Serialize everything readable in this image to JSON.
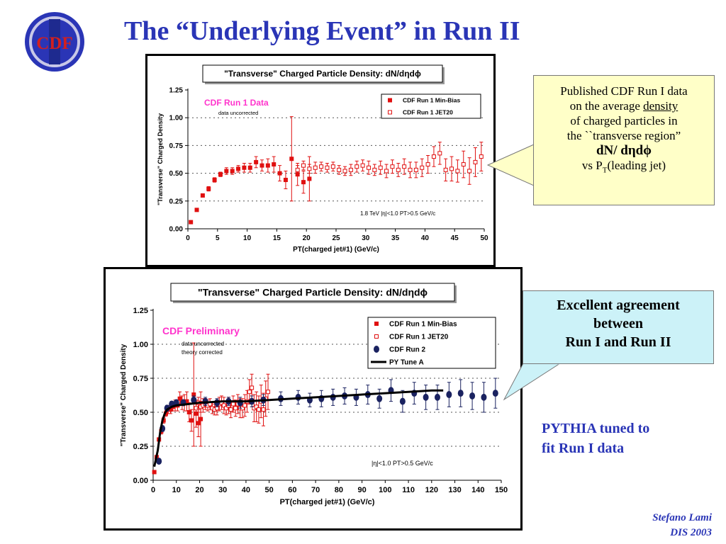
{
  "slide": {
    "title": "The “Underlying Event” in Run II",
    "logo_text": "CDF",
    "logo_colors": {
      "outer": "#2a35b6",
      "ring": "#c8c8e8",
      "text": "#d21f1f",
      "bar": "#1e2a8f"
    }
  },
  "callout1": {
    "line1": "Published CDF Run I data",
    "line2a": "on the average ",
    "line2b": "density",
    "line3": "of charged particles in",
    "line4": "the ``transverse region”",
    "line5": "dN/ dηdϕ",
    "line6a": "vs P",
    "line6sub": "T",
    "line6b": "(leading jet)"
  },
  "callout2": {
    "line1": "Excellent agreement",
    "line2": "between",
    "line3": "Run I and Run II"
  },
  "pythia_note": {
    "line1": "PYTHIA tuned to",
    "line2": "fit Run I data"
  },
  "footer": {
    "author": "Stefano Lami",
    "conference": "DIS 2003"
  },
  "chart_data": [
    {
      "type": "scatter",
      "title": "\"Transverse\" Charged Particle Density: dN/dηdϕ",
      "xlabel": "PT(charged jet#1)  (GeV/c)",
      "ylabel": "\"Transverse\" Charged Density",
      "xlim": [
        0,
        50
      ],
      "ylim": [
        0,
        1.25
      ],
      "x_ticks": [
        0,
        5,
        10,
        15,
        20,
        25,
        30,
        35,
        40,
        45,
        50
      ],
      "y_ticks": [
        "0.00",
        "0.25",
        "0.50",
        "0.75",
        "1.00",
        "1.25"
      ],
      "annotations": [
        "CDF Run 1 Data",
        "data uncorrected",
        "1.8 TeV |η|<1.0 PT>0.5 GeV/c"
      ],
      "legend": "top-right",
      "series": [
        {
          "name": "CDF Run 1 Min-Bias",
          "color": "#e01010",
          "marker": "filled-square",
          "x": [
            0.5,
            1.5,
            2.5,
            3.5,
            4.5,
            5.5,
            6.5,
            7.5,
            8.5,
            9.5,
            10.5,
            11.5,
            12.5,
            13.5,
            14.5,
            15.5,
            16.5,
            17.5,
            18.5,
            19.5,
            20.5
          ],
          "y": [
            0.06,
            0.17,
            0.3,
            0.36,
            0.44,
            0.49,
            0.52,
            0.52,
            0.54,
            0.55,
            0.55,
            0.6,
            0.57,
            0.57,
            0.58,
            0.5,
            0.44,
            0.63,
            0.49,
            0.42,
            0.45
          ],
          "err": [
            0,
            0,
            0.01,
            0.02,
            0.02,
            0.02,
            0.03,
            0.03,
            0.03,
            0.04,
            0.04,
            0.05,
            0.05,
            0.06,
            0.07,
            0.07,
            0.08,
            0.38,
            0.1,
            0.1,
            0.2
          ]
        },
        {
          "name": "CDF Run 1 JET20",
          "color": "#e01010",
          "marker": "open-square",
          "x": [
            18.5,
            19.5,
            20.5,
            21.5,
            22.5,
            23.5,
            24.5,
            25.5,
            26.5,
            27.5,
            28.5,
            29.5,
            30.5,
            31.5,
            32.5,
            33.5,
            34.5,
            35.5,
            36.5,
            37.5,
            38.5,
            39.5,
            40.5,
            41.5,
            42.5,
            43.5,
            44.5,
            45.5,
            46.5,
            47.5,
            48.5,
            49.5
          ],
          "y": [
            0.53,
            0.57,
            0.54,
            0.55,
            0.56,
            0.55,
            0.56,
            0.53,
            0.52,
            0.53,
            0.56,
            0.57,
            0.55,
            0.53,
            0.55,
            0.52,
            0.56,
            0.53,
            0.56,
            0.53,
            0.53,
            0.55,
            0.58,
            0.65,
            0.68,
            0.53,
            0.54,
            0.52,
            0.58,
            0.52,
            0.6,
            0.65
          ],
          "err": [
            0.04,
            0.04,
            0.04,
            0.05,
            0.04,
            0.04,
            0.04,
            0.04,
            0.04,
            0.05,
            0.05,
            0.05,
            0.06,
            0.05,
            0.06,
            0.06,
            0.06,
            0.06,
            0.07,
            0.07,
            0.07,
            0.08,
            0.08,
            0.09,
            0.1,
            0.1,
            0.11,
            0.1,
            0.12,
            0.12,
            0.13,
            0.13
          ]
        }
      ]
    },
    {
      "type": "scatter",
      "title": "\"Transverse\" Charged Particle Density: dN/dηdϕ",
      "xlabel": "PT(charged jet#1)  (GeV/c)",
      "ylabel": "\"Transverse\" Charged Density",
      "xlim": [
        0,
        150
      ],
      "ylim": [
        0,
        1.25
      ],
      "x_ticks": [
        0,
        10,
        20,
        30,
        40,
        50,
        60,
        70,
        80,
        90,
        100,
        110,
        120,
        130,
        140,
        150
      ],
      "y_ticks": [
        "0.00",
        "0.25",
        "0.50",
        "0.75",
        "1.00",
        "1.25"
      ],
      "annotations": [
        "CDF Preliminary",
        "data uncorrected",
        "theory corrected",
        "|η|<1.0 PT>0.5 GeV/c"
      ],
      "legend": "top-right",
      "series": [
        {
          "name": "CDF Run 1 Min-Bias",
          "color": "#e01010",
          "marker": "filled-square",
          "x": [
            0.5,
            1.5,
            2.5,
            3.5,
            4.5,
            5.5,
            6.5,
            7.5,
            8.5,
            9.5,
            10.5,
            11.5,
            12.5,
            13.5,
            14.5,
            15.5,
            16.5,
            17.5,
            18.5,
            19.5,
            20.5
          ],
          "y": [
            0.06,
            0.17,
            0.3,
            0.36,
            0.44,
            0.49,
            0.52,
            0.52,
            0.54,
            0.55,
            0.55,
            0.6,
            0.57,
            0.57,
            0.58,
            0.5,
            0.44,
            0.63,
            0.49,
            0.42,
            0.45
          ],
          "err": [
            0,
            0,
            0.01,
            0.02,
            0.02,
            0.02,
            0.03,
            0.03,
            0.03,
            0.04,
            0.04,
            0.05,
            0.05,
            0.06,
            0.07,
            0.07,
            0.08,
            0.38,
            0.1,
            0.1,
            0.2
          ]
        },
        {
          "name": "CDF Run 1 JET20",
          "color": "#e01010",
          "marker": "open-square",
          "x": [
            18.5,
            19.5,
            20.5,
            21.5,
            22.5,
            23.5,
            24.5,
            25.5,
            26.5,
            27.5,
            28.5,
            29.5,
            30.5,
            31.5,
            32.5,
            33.5,
            34.5,
            35.5,
            36.5,
            37.5,
            38.5,
            39.5,
            40.5,
            41.5,
            42.5,
            43.5,
            44.5,
            45.5,
            46.5,
            47.5,
            48.5,
            49.5
          ],
          "y": [
            0.53,
            0.57,
            0.54,
            0.55,
            0.56,
            0.55,
            0.56,
            0.53,
            0.52,
            0.53,
            0.56,
            0.57,
            0.55,
            0.53,
            0.55,
            0.52,
            0.56,
            0.53,
            0.56,
            0.53,
            0.53,
            0.55,
            0.58,
            0.65,
            0.68,
            0.53,
            0.54,
            0.52,
            0.58,
            0.52,
            0.6,
            0.65
          ],
          "err": [
            0.04,
            0.04,
            0.04,
            0.05,
            0.04,
            0.04,
            0.04,
            0.04,
            0.04,
            0.05,
            0.05,
            0.05,
            0.06,
            0.05,
            0.06,
            0.06,
            0.06,
            0.06,
            0.07,
            0.07,
            0.07,
            0.08,
            0.08,
            0.09,
            0.1,
            0.1,
            0.11,
            0.1,
            0.12,
            0.12,
            0.13,
            0.13
          ]
        },
        {
          "name": "CDF Run 2",
          "color": "#1a2260",
          "marker": "filled-circle",
          "x": [
            2.5,
            4,
            6,
            8,
            10,
            13,
            17.5,
            22.5,
            27.5,
            32.5,
            37.5,
            42.5,
            47.5,
            55,
            62.5,
            67.5,
            72.5,
            77.5,
            82.5,
            87.5,
            92.5,
            97.5,
            102.5,
            107.5,
            112.5,
            117.5,
            122.5,
            127.5,
            132.5,
            137.5,
            142.5,
            147.5
          ],
          "y": [
            0.14,
            0.38,
            0.53,
            0.56,
            0.57,
            0.57,
            0.59,
            0.58,
            0.57,
            0.58,
            0.57,
            0.58,
            0.59,
            0.6,
            0.61,
            0.59,
            0.6,
            0.61,
            0.62,
            0.61,
            0.63,
            0.6,
            0.66,
            0.58,
            0.64,
            0.61,
            0.61,
            0.63,
            0.64,
            0.62,
            0.61,
            0.64
          ],
          "err": [
            0.01,
            0.02,
            0.02,
            0.02,
            0.02,
            0.02,
            0.03,
            0.03,
            0.03,
            0.03,
            0.04,
            0.04,
            0.04,
            0.05,
            0.05,
            0.05,
            0.06,
            0.06,
            0.06,
            0.06,
            0.07,
            0.07,
            0.08,
            0.08,
            0.08,
            0.09,
            0.09,
            0.09,
            0.1,
            0.1,
            0.11,
            0.11
          ]
        },
        {
          "name": "PY Tune A",
          "color": "#000000",
          "marker": "line",
          "x": [
            0.5,
            2,
            3,
            4,
            5,
            6,
            8,
            10,
            15,
            20,
            30,
            40,
            50,
            60,
            70,
            80,
            90,
            100,
            110,
            120,
            125
          ],
          "y": [
            0.1,
            0.22,
            0.35,
            0.44,
            0.49,
            0.52,
            0.54,
            0.55,
            0.56,
            0.57,
            0.58,
            0.58,
            0.59,
            0.6,
            0.61,
            0.62,
            0.63,
            0.64,
            0.65,
            0.66,
            0.66
          ]
        }
      ]
    }
  ]
}
